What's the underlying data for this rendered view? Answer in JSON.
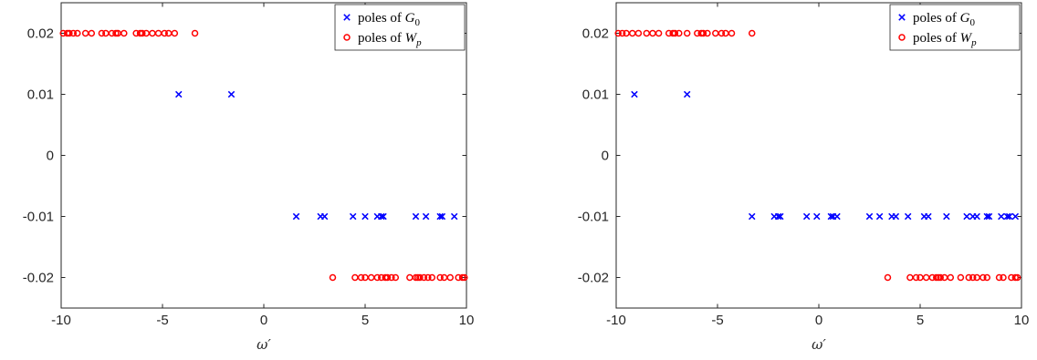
{
  "colors": {
    "g0": "#0000ff",
    "wp": "#ff0000",
    "axis": "#262626"
  },
  "chart_data": [
    {
      "type": "scatter",
      "xlabel": "ω′",
      "xlim": [
        -10,
        10
      ],
      "ylim": [
        -0.025,
        0.025
      ],
      "xticks": [
        -10,
        -5,
        0,
        5,
        10
      ],
      "xtick_labels": [
        "-10",
        "-5",
        "0",
        "5",
        "10"
      ],
      "yticks": [
        0.02,
        0.01,
        0,
        -0.01,
        -0.02
      ],
      "ytick_labels": [
        "0.02",
        "0.01",
        "0",
        "-0.01",
        "-0.02"
      ],
      "legend_position": "top-right",
      "legend": [
        {
          "label": "poles of ",
          "symbol": "G",
          "sub": "0",
          "marker": "x",
          "color": "#0000ff"
        },
        {
          "label": "poles of ",
          "symbol": "W",
          "sub": "p",
          "marker": "o",
          "color": "#ff0000"
        }
      ],
      "series": [
        {
          "name": "poles of G0",
          "marker": "x",
          "color": "#0000ff",
          "points": [
            [
              -4.2,
              0.01
            ],
            [
              -1.6,
              0.01
            ],
            [
              1.6,
              -0.01
            ],
            [
              2.8,
              -0.01
            ],
            [
              3.0,
              -0.01
            ],
            [
              4.4,
              -0.01
            ],
            [
              5.0,
              -0.01
            ],
            [
              5.6,
              -0.01
            ],
            [
              5.8,
              -0.01
            ],
            [
              5.9,
              -0.01
            ],
            [
              7.5,
              -0.01
            ],
            [
              8.0,
              -0.01
            ],
            [
              8.7,
              -0.01
            ],
            [
              8.8,
              -0.01
            ],
            [
              9.4,
              -0.01
            ]
          ]
        },
        {
          "name": "poles of Wp",
          "marker": "o",
          "color": "#ff0000",
          "points": [
            [
              -9.9,
              0.02
            ],
            [
              -9.7,
              0.02
            ],
            [
              -9.6,
              0.02
            ],
            [
              -9.4,
              0.02
            ],
            [
              -9.2,
              0.02
            ],
            [
              -8.8,
              0.02
            ],
            [
              -8.5,
              0.02
            ],
            [
              -8.0,
              0.02
            ],
            [
              -7.8,
              0.02
            ],
            [
              -7.5,
              0.02
            ],
            [
              -7.3,
              0.02
            ],
            [
              -7.2,
              0.02
            ],
            [
              -6.9,
              0.02
            ],
            [
              -6.3,
              0.02
            ],
            [
              -6.1,
              0.02
            ],
            [
              -6.0,
              0.02
            ],
            [
              -5.8,
              0.02
            ],
            [
              -5.5,
              0.02
            ],
            [
              -5.2,
              0.02
            ],
            [
              -4.9,
              0.02
            ],
            [
              -4.7,
              0.02
            ],
            [
              -4.4,
              0.02
            ],
            [
              -3.4,
              0.02
            ],
            [
              3.4,
              -0.02
            ],
            [
              4.5,
              -0.02
            ],
            [
              4.8,
              -0.02
            ],
            [
              5.0,
              -0.02
            ],
            [
              5.3,
              -0.02
            ],
            [
              5.6,
              -0.02
            ],
            [
              5.8,
              -0.02
            ],
            [
              6.0,
              -0.02
            ],
            [
              6.1,
              -0.02
            ],
            [
              6.3,
              -0.02
            ],
            [
              6.5,
              -0.02
            ],
            [
              7.2,
              -0.02
            ],
            [
              7.5,
              -0.02
            ],
            [
              7.6,
              -0.02
            ],
            [
              7.7,
              -0.02
            ],
            [
              7.9,
              -0.02
            ],
            [
              8.1,
              -0.02
            ],
            [
              8.3,
              -0.02
            ],
            [
              8.7,
              -0.02
            ],
            [
              8.9,
              -0.02
            ],
            [
              9.2,
              -0.02
            ],
            [
              9.6,
              -0.02
            ],
            [
              9.8,
              -0.02
            ],
            [
              9.9,
              -0.02
            ]
          ]
        }
      ]
    },
    {
      "type": "scatter",
      "xlabel": "ω′",
      "xlim": [
        -10,
        10
      ],
      "ylim": [
        -0.025,
        0.025
      ],
      "xticks": [
        -10,
        -5,
        0,
        5,
        10
      ],
      "xtick_labels": [
        "-10",
        "-5",
        "0",
        "5",
        "10"
      ],
      "yticks": [
        0.02,
        0.01,
        0,
        -0.01,
        -0.02
      ],
      "ytick_labels": [
        "0.02",
        "0.01",
        "0",
        "-0.01",
        "-0.02"
      ],
      "legend_position": "top-right",
      "legend": [
        {
          "label": "poles of ",
          "symbol": "G",
          "sub": "0",
          "marker": "x",
          "color": "#0000ff"
        },
        {
          "label": "poles of ",
          "symbol": "W",
          "sub": "p",
          "marker": "o",
          "color": "#ff0000"
        }
      ],
      "series": [
        {
          "name": "poles of G0",
          "marker": "x",
          "color": "#0000ff",
          "points": [
            [
              -9.1,
              0.01
            ],
            [
              -6.5,
              0.01
            ],
            [
              -3.3,
              -0.01
            ],
            [
              -2.2,
              -0.01
            ],
            [
              -2.0,
              -0.01
            ],
            [
              -1.9,
              -0.01
            ],
            [
              -0.6,
              -0.01
            ],
            [
              -0.1,
              -0.01
            ],
            [
              0.6,
              -0.01
            ],
            [
              0.7,
              -0.01
            ],
            [
              0.9,
              -0.01
            ],
            [
              2.5,
              -0.01
            ],
            [
              3.0,
              -0.01
            ],
            [
              3.6,
              -0.01
            ],
            [
              3.8,
              -0.01
            ],
            [
              4.4,
              -0.01
            ],
            [
              5.2,
              -0.01
            ],
            [
              5.4,
              -0.01
            ],
            [
              6.3,
              -0.01
            ],
            [
              7.3,
              -0.01
            ],
            [
              7.6,
              -0.01
            ],
            [
              7.8,
              -0.01
            ],
            [
              8.3,
              -0.01
            ],
            [
              8.4,
              -0.01
            ],
            [
              9.0,
              -0.01
            ],
            [
              9.3,
              -0.01
            ],
            [
              9.4,
              -0.01
            ],
            [
              9.7,
              -0.01
            ]
          ]
        },
        {
          "name": "poles of Wp",
          "marker": "o",
          "color": "#ff0000",
          "points": [
            [
              -9.9,
              0.02
            ],
            [
              -9.7,
              0.02
            ],
            [
              -9.5,
              0.02
            ],
            [
              -9.2,
              0.02
            ],
            [
              -8.9,
              0.02
            ],
            [
              -8.5,
              0.02
            ],
            [
              -8.2,
              0.02
            ],
            [
              -7.9,
              0.02
            ],
            [
              -7.4,
              0.02
            ],
            [
              -7.2,
              0.02
            ],
            [
              -7.1,
              0.02
            ],
            [
              -6.9,
              0.02
            ],
            [
              -6.5,
              0.02
            ],
            [
              -6.0,
              0.02
            ],
            [
              -5.8,
              0.02
            ],
            [
              -5.7,
              0.02
            ],
            [
              -5.5,
              0.02
            ],
            [
              -5.1,
              0.02
            ],
            [
              -4.8,
              0.02
            ],
            [
              -4.6,
              0.02
            ],
            [
              -4.3,
              0.02
            ],
            [
              -3.3,
              0.02
            ],
            [
              3.4,
              -0.02
            ],
            [
              4.5,
              -0.02
            ],
            [
              4.8,
              -0.02
            ],
            [
              5.0,
              -0.02
            ],
            [
              5.3,
              -0.02
            ],
            [
              5.6,
              -0.02
            ],
            [
              5.8,
              -0.02
            ],
            [
              5.9,
              -0.02
            ],
            [
              6.0,
              -0.02
            ],
            [
              6.2,
              -0.02
            ],
            [
              6.5,
              -0.02
            ],
            [
              7.0,
              -0.02
            ],
            [
              7.4,
              -0.02
            ],
            [
              7.6,
              -0.02
            ],
            [
              7.8,
              -0.02
            ],
            [
              8.1,
              -0.02
            ],
            [
              8.3,
              -0.02
            ],
            [
              8.9,
              -0.02
            ],
            [
              9.1,
              -0.02
            ],
            [
              9.5,
              -0.02
            ],
            [
              9.7,
              -0.02
            ],
            [
              9.8,
              -0.02
            ]
          ]
        }
      ]
    }
  ]
}
